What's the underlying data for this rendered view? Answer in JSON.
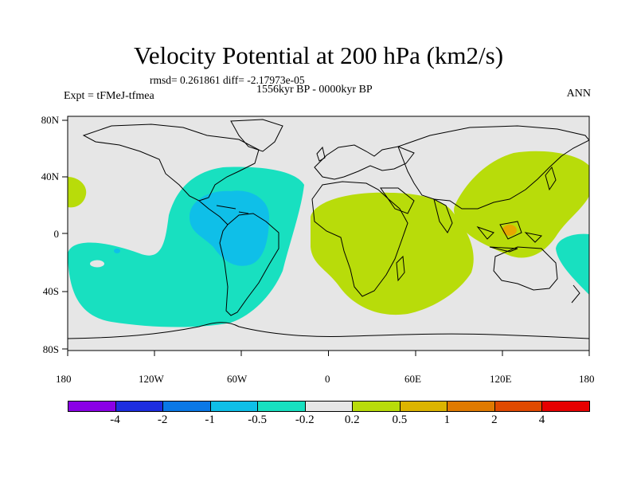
{
  "title": "Velocity Potential at 200 hPa (km2/s)",
  "stats": "rmsd= 0.261861 diff= -2.17973e-05",
  "period": "1556kyr BP - 0000kyr BP",
  "expt": "Expt = tFMeJ-tfmea",
  "season": "ANN",
  "lon_ticks": [
    "180",
    "120W",
    "60W",
    "0",
    "60E",
    "120E",
    "180"
  ],
  "lat_ticks": [
    "80N",
    "40N",
    "0",
    "40S",
    "80S"
  ],
  "colors": {
    "background": "#e6e6e6",
    "neg_strong": "#0fbfe8",
    "neg_weak": "#18e0c0",
    "pos_weak": "#b8dc0a",
    "pos_mid": "#e6a800"
  },
  "colorbar": {
    "colors": [
      "#8a00e6",
      "#1e2ee0",
      "#0a78e6",
      "#0fbfe8",
      "#18e0c0",
      "#e6e6e6",
      "#b8dc0a",
      "#dcb400",
      "#e07a00",
      "#e04a00",
      "#e60000"
    ],
    "labels": [
      "-4",
      "-2",
      "-1",
      "-0.5",
      "-0.2",
      "0.2",
      "0.5",
      "1",
      "2",
      "4"
    ]
  },
  "regions": [
    {
      "name": "Western Hemisphere negative anomaly (< -0.2)",
      "level": "neg_weak"
    },
    {
      "name": "Tropical South America core (< -0.5)",
      "level": "neg_strong"
    },
    {
      "name": "Africa / Indian Ocean positive anomaly (> 0.2)",
      "level": "pos_weak"
    },
    {
      "name": "Asia / Western Pacific positive anomaly (> 0.2)",
      "level": "pos_weak"
    },
    {
      "name": "Maritime Continent maximum (> 0.5)",
      "level": "pos_mid"
    }
  ]
}
